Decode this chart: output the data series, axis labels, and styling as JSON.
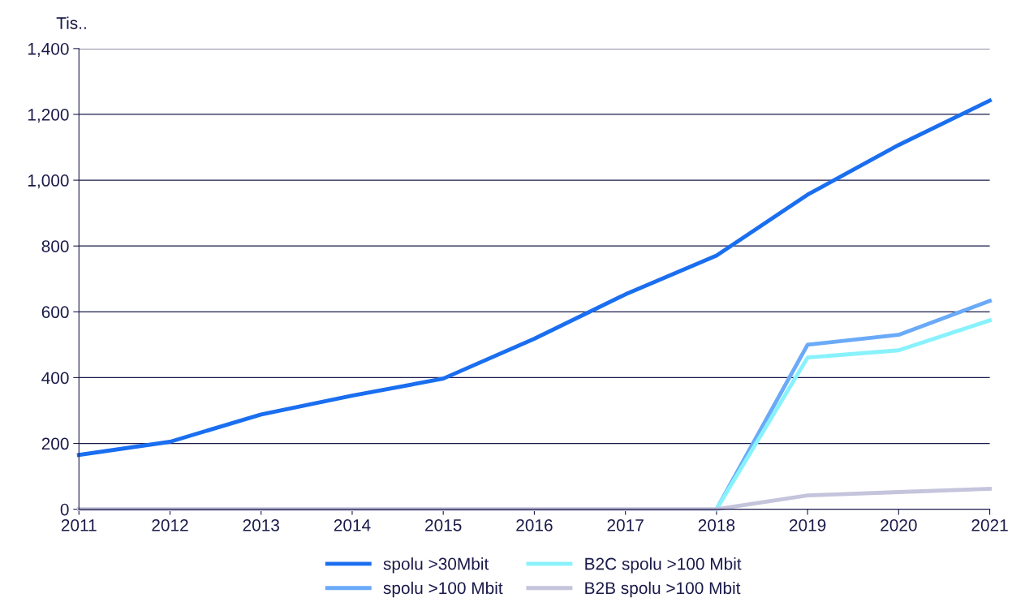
{
  "chart_data": {
    "type": "line",
    "ylabel": "Tis..",
    "x": [
      2011,
      2012,
      2013,
      2014,
      2015,
      2016,
      2017,
      2018,
      2019,
      2020,
      2021
    ],
    "series": [
      {
        "name": "spolu >30Mbit",
        "color": "#1a6ef0",
        "values": [
          165,
          205,
          288,
          345,
          397,
          518,
          653,
          771,
          956,
          1107,
          1242
        ]
      },
      {
        "name": "spolu >100 Mbit",
        "color": "#6aaaf8",
        "values": [
          null,
          null,
          null,
          null,
          null,
          null,
          null,
          0,
          500,
          530,
          633
        ]
      },
      {
        "name": "B2C spolu >100 Mbit",
        "color": "#88f2fc",
        "values": [
          null,
          null,
          null,
          null,
          null,
          null,
          null,
          0,
          461,
          483,
          574
        ]
      },
      {
        "name": "B2B spolu >100 Mbit",
        "color": "#c4c4dc",
        "values": [
          0,
          0,
          0,
          0,
          0,
          0,
          0,
          0,
          42,
          52,
          62
        ]
      }
    ],
    "xlim": [
      2011,
      2021
    ],
    "xticks": [
      2011,
      2012,
      2013,
      2014,
      2015,
      2016,
      2017,
      2018,
      2019,
      2020,
      2021
    ],
    "ylim": [
      0,
      1400
    ],
    "yticks": [
      {
        "value": 0,
        "label": "0"
      },
      {
        "value": 200,
        "label": "200"
      },
      {
        "value": 400,
        "label": "400"
      },
      {
        "value": 600,
        "label": "600"
      },
      {
        "value": 800,
        "label": "800"
      },
      {
        "value": 1000,
        "label": "1,000"
      },
      {
        "value": 1200,
        "label": "1,200"
      },
      {
        "value": 1400,
        "label": "1,400"
      }
    ],
    "grid": "y",
    "legend": "bottom",
    "marker": "none",
    "line_style": "solid"
  }
}
